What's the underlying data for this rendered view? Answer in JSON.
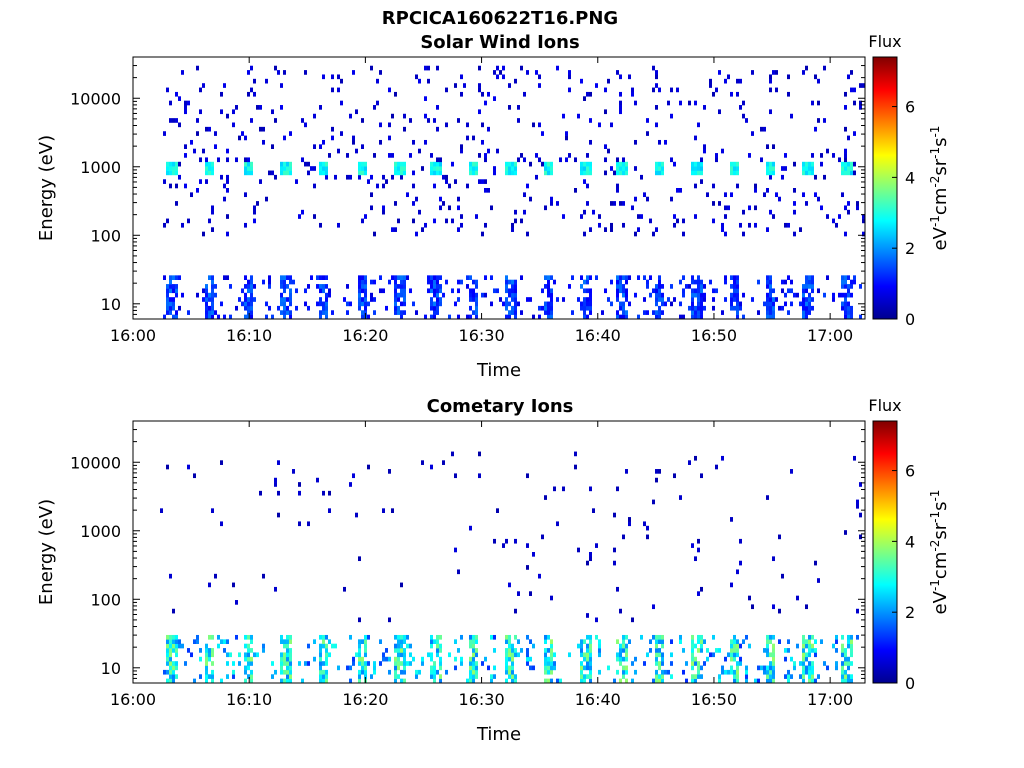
{
  "figure": {
    "filename_title": "RPCICA160622T16.PNG"
  },
  "chart_data": [
    {
      "type": "heatmap",
      "title": "Solar Wind Ions",
      "xlabel": "Time",
      "ylabel": "Energy (eV)",
      "x_ticks": [
        "16:00",
        "16:10",
        "16:20",
        "16:30",
        "16:40",
        "16:50",
        "17:00"
      ],
      "y_scale": "log",
      "y_ticks": [
        "10",
        "100",
        "1000",
        "10000"
      ],
      "ylim": [
        6,
        40000
      ],
      "colorbar": {
        "label": "Flux",
        "units": "eV-1cm-2sr-1s-1",
        "ticks": [
          "0",
          "2",
          "4",
          "6"
        ],
        "range": [
          0,
          7.4
        ],
        "colormap": "jet"
      },
      "sweep_times_min": [
        3.2,
        6.5,
        9.8,
        13.0,
        16.3,
        19.6,
        22.8,
        26.0,
        29.2,
        32.4,
        35.6,
        38.8,
        42.0,
        45.2,
        48.4,
        51.6,
        54.8,
        58.0,
        61.3
      ],
      "features": [
        {
          "label": "solar wind beam",
          "energy_eV": 900,
          "flux": 2.8
        },
        {
          "label": "background counts",
          "energy_eV_range": [
            100,
            30000
          ],
          "flux": 0.6
        },
        {
          "label": "low-energy counts",
          "energy_eV_range": [
            6,
            25
          ],
          "flux": 1.4
        }
      ]
    },
    {
      "type": "heatmap",
      "title": "Cometary Ions",
      "xlabel": "Time",
      "ylabel": "Energy (eV)",
      "x_ticks": [
        "16:00",
        "16:10",
        "16:20",
        "16:30",
        "16:40",
        "16:50",
        "17:00"
      ],
      "y_scale": "log",
      "y_ticks": [
        "10",
        "100",
        "1000",
        "10000"
      ],
      "ylim": [
        6,
        40000
      ],
      "colorbar": {
        "label": "Flux",
        "units": "eV-1cm-2sr-1s-1",
        "ticks": [
          "0",
          "2",
          "4",
          "6"
        ],
        "range": [
          0,
          7.4
        ],
        "colormap": "jet"
      },
      "sweep_times_min": [
        3.2,
        6.5,
        9.8,
        13.0,
        16.3,
        19.6,
        22.8,
        26.0,
        29.2,
        32.4,
        35.6,
        38.8,
        42.0,
        45.2,
        48.4,
        51.6,
        54.8,
        58.0,
        61.3
      ],
      "features": [
        {
          "label": "cometary ions",
          "energy_eV_range": [
            6,
            30
          ],
          "flux": 3.0
        },
        {
          "label": "background counts",
          "energy_eV_range": [
            50,
            15000
          ],
          "flux": 0.5
        }
      ]
    }
  ]
}
